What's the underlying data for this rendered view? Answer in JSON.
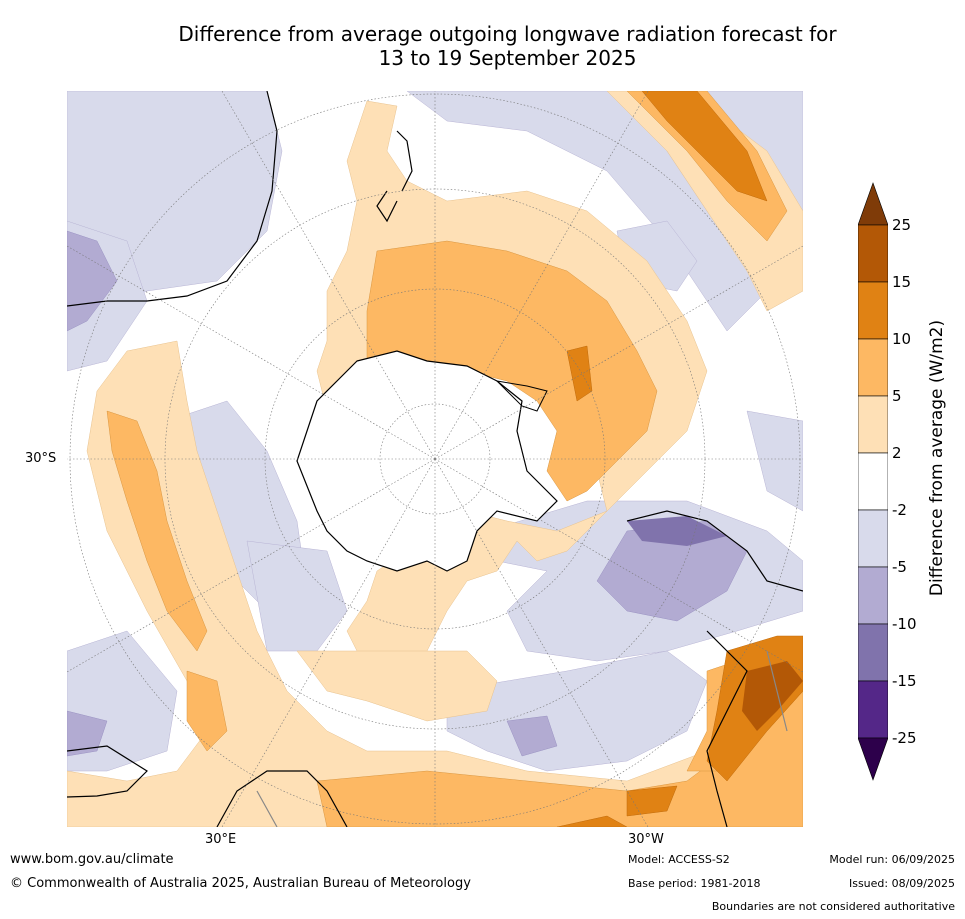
{
  "title_line1": "Difference from average outgoing longwave radiation forecast for",
  "title_line2": "13 to 19 September 2025",
  "map": {
    "projection": "south-polar-stereographic",
    "graticule_labels": {
      "lat": "30°S",
      "lon_left": "30°E",
      "lon_right": "30°W"
    }
  },
  "colorbar": {
    "label": "Difference from average (W/m2)",
    "ticks": [
      "25",
      "15",
      "10",
      "5",
      "2",
      "-2",
      "-5",
      "-10",
      "-15",
      "-25"
    ],
    "bins": [
      {
        "from": 15,
        "to": 25,
        "color": "#b35806"
      },
      {
        "from": 10,
        "to": 15,
        "color": "#e08214"
      },
      {
        "from": 5,
        "to": 10,
        "color": "#fdb863"
      },
      {
        "from": 2,
        "to": 5,
        "color": "#fee0b6"
      },
      {
        "from": -2,
        "to": 2,
        "color": "#ffffff"
      },
      {
        "from": -5,
        "to": -2,
        "color": "#d8daeb"
      },
      {
        "from": -10,
        "to": -5,
        "color": "#b2abd2"
      },
      {
        "from": -15,
        "to": -10,
        "color": "#8073ac"
      },
      {
        "from": -25,
        "to": -15,
        "color": "#542788"
      }
    ],
    "over_color": "#7f3b08",
    "under_color": "#2d004b"
  },
  "footer": {
    "website": "www.bom.gov.au/climate",
    "copyright": "© Commonwealth of Australia 2025, Australian Bureau of Meteorology",
    "model": "Model: ACCESS-S2",
    "base_period": "Base period: 1981-2018",
    "model_run": "Model run: 06/09/2025",
    "issued": "Issued: 08/09/2025",
    "disclaimer": "Boundaries are not considered authoritative"
  }
}
